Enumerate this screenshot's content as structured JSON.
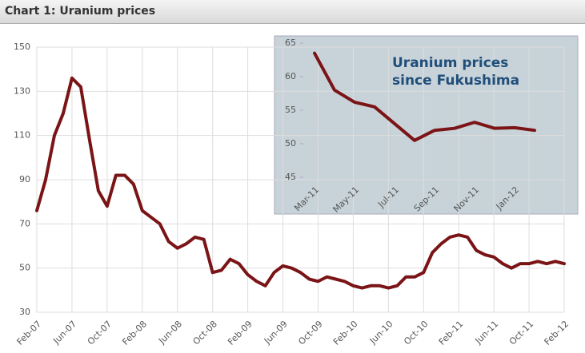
{
  "header": {
    "title": "Chart 1: Uranium prices"
  },
  "chart_data": [
    {
      "type": "line",
      "categories": [
        "Feb-07",
        null,
        null,
        null,
        "Jun-07",
        null,
        null,
        null,
        "Oct-07",
        null,
        null,
        null,
        "Feb-08",
        null,
        null,
        null,
        "Jun-08",
        null,
        null,
        null,
        "Oct-08",
        null,
        null,
        null,
        "Feb-09",
        null,
        null,
        null,
        "Jun-09",
        null,
        null,
        null,
        "Oct-09",
        null,
        null,
        null,
        "Feb-10",
        null,
        null,
        null,
        "Jun-10",
        null,
        null,
        null,
        "Oct-10",
        null,
        null,
        null,
        "Feb-11",
        null,
        null,
        null,
        "Jun-11",
        null,
        null,
        null,
        "Oct-11",
        null,
        null,
        null,
        "Feb-12"
      ],
      "values": [
        76,
        90,
        110,
        120,
        136,
        132,
        108,
        85,
        78,
        92,
        92,
        88,
        76,
        73,
        70,
        62,
        59,
        61,
        64,
        63,
        48,
        49,
        54,
        52,
        47,
        44,
        42,
        48,
        51,
        50,
        48,
        45,
        44,
        46,
        45,
        44,
        42,
        41,
        42,
        42,
        41,
        42,
        46,
        46,
        48,
        57,
        61,
        64,
        65,
        64,
        58,
        56,
        55,
        52,
        50,
        52,
        52,
        53,
        52,
        53,
        52
      ],
      "color": "#7a1416",
      "ylim": [
        30,
        150
      ],
      "yticks": [
        30,
        50,
        70,
        90,
        110,
        130,
        150
      ],
      "grid": true
    },
    {
      "type": "line",
      "title": "Uranium prices since Fukushima",
      "categories": [
        "Mar-11",
        null,
        "May-11",
        null,
        "Jul-11",
        null,
        "Sep-11",
        null,
        "Nov-11",
        null,
        "Jan-12",
        null
      ],
      "values": [
        63.5,
        58,
        56.2,
        55.5,
        53,
        50.5,
        52,
        52.3,
        53.2,
        52.3,
        52.4,
        52
      ],
      "color": "#7a1416",
      "ylim": [
        45,
        65
      ],
      "yticks": [
        45,
        50,
        55,
        60,
        65
      ],
      "grid": false
    }
  ]
}
